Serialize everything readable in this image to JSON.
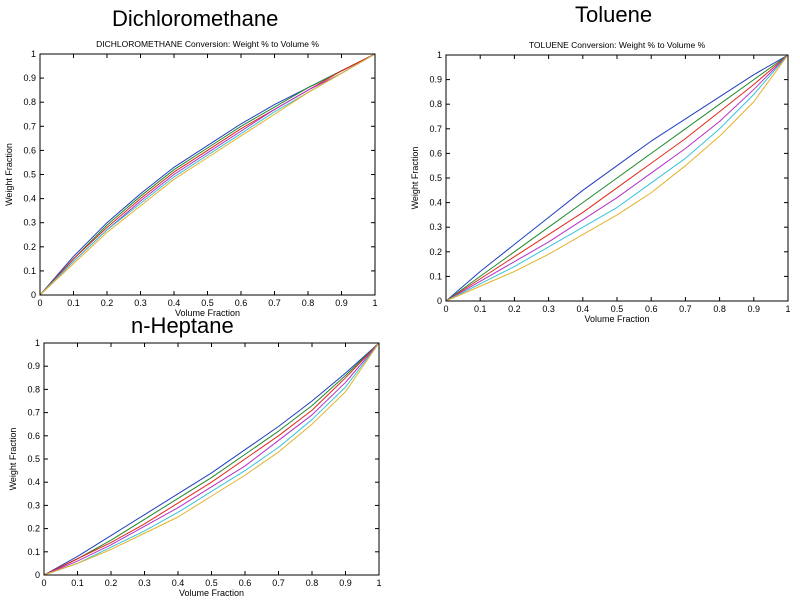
{
  "chart_data": [
    {
      "type": "line",
      "title": "Dichloromethane",
      "subtitle": "DICHLOROMETHANE Conversion: Weight % to Volume %",
      "xlabel": "Volume Fraction",
      "ylabel": "Weight Fraction",
      "xlim": [
        0,
        1
      ],
      "ylim": [
        0,
        1
      ],
      "xticks": [
        "0",
        "0.1",
        "0.2",
        "0.3",
        "0.4",
        "0.5",
        "0.6",
        "0.7",
        "0.8",
        "0.9",
        "1"
      ],
      "yticks": [
        "0",
        "0.1",
        "0.2",
        "0.3",
        "0.4",
        "0.5",
        "0.6",
        "0.7",
        "0.8",
        "0.9",
        "1"
      ],
      "grid": false,
      "x": [
        0,
        0.1,
        0.2,
        0.3,
        0.4,
        0.5,
        0.6,
        0.7,
        0.8,
        0.9,
        1
      ],
      "series": [
        {
          "values": [
            0,
            0.16,
            0.3,
            0.42,
            0.53,
            0.62,
            0.71,
            0.79,
            0.86,
            0.93,
            1
          ]
        },
        {
          "values": [
            0,
            0.15,
            0.29,
            0.41,
            0.52,
            0.61,
            0.7,
            0.78,
            0.86,
            0.93,
            1
          ]
        },
        {
          "values": [
            0,
            0.15,
            0.28,
            0.4,
            0.51,
            0.6,
            0.69,
            0.77,
            0.85,
            0.93,
            1
          ]
        },
        {
          "values": [
            0,
            0.14,
            0.27,
            0.39,
            0.5,
            0.59,
            0.68,
            0.77,
            0.85,
            0.92,
            1
          ]
        },
        {
          "values": [
            0,
            0.14,
            0.27,
            0.38,
            0.49,
            0.58,
            0.67,
            0.76,
            0.84,
            0.92,
            1
          ]
        },
        {
          "values": [
            0,
            0.13,
            0.26,
            0.37,
            0.48,
            0.57,
            0.66,
            0.75,
            0.84,
            0.92,
            1
          ]
        }
      ]
    },
    {
      "type": "line",
      "title": "Toluene",
      "subtitle": "TOLUENE Conversion: Weight % to Volume %",
      "xlabel": "Volume Fraction",
      "ylabel": "Weight Fraction",
      "xlim": [
        0,
        1
      ],
      "ylim": [
        0,
        1
      ],
      "xticks": [
        "0",
        "0.1",
        "0.2",
        "0.3",
        "0.4",
        "0.5",
        "0.6",
        "0.7",
        "0.8",
        "0.9",
        "1"
      ],
      "yticks": [
        "0",
        "0.1",
        "0.2",
        "0.3",
        "0.4",
        "0.5",
        "0.6",
        "0.7",
        "0.8",
        "0.9",
        "1"
      ],
      "grid": false,
      "x": [
        0,
        0.1,
        0.2,
        0.3,
        0.4,
        0.5,
        0.6,
        0.7,
        0.8,
        0.9,
        1
      ],
      "series": [
        {
          "values": [
            0,
            0.12,
            0.23,
            0.34,
            0.45,
            0.55,
            0.65,
            0.74,
            0.83,
            0.92,
            1
          ]
        },
        {
          "values": [
            0,
            0.1,
            0.2,
            0.3,
            0.4,
            0.5,
            0.6,
            0.7,
            0.8,
            0.9,
            1
          ]
        },
        {
          "values": [
            0,
            0.09,
            0.18,
            0.27,
            0.36,
            0.46,
            0.56,
            0.66,
            0.77,
            0.88,
            1
          ]
        },
        {
          "values": [
            0,
            0.08,
            0.16,
            0.24,
            0.33,
            0.42,
            0.52,
            0.62,
            0.73,
            0.86,
            1
          ]
        },
        {
          "values": [
            0,
            0.07,
            0.14,
            0.22,
            0.3,
            0.38,
            0.48,
            0.58,
            0.7,
            0.84,
            1
          ]
        },
        {
          "values": [
            0,
            0.06,
            0.12,
            0.19,
            0.27,
            0.35,
            0.44,
            0.55,
            0.67,
            0.81,
            1
          ]
        }
      ]
    },
    {
      "type": "line",
      "title": "n-Heptane",
      "subtitle": "",
      "xlabel": "Volume Fraction",
      "ylabel": "Weight Fraction",
      "xlim": [
        0,
        1
      ],
      "ylim": [
        0,
        1
      ],
      "xticks": [
        "0",
        "0.1",
        "0.2",
        "0.3",
        "0.4",
        "0.5",
        "0.6",
        "0.7",
        "0.8",
        "0.9",
        "1"
      ],
      "yticks": [
        "0",
        "0.1",
        "0.2",
        "0.3",
        "0.4",
        "0.5",
        "0.6",
        "0.7",
        "0.8",
        "0.9",
        "1"
      ],
      "grid": false,
      "x": [
        0,
        0.1,
        0.2,
        0.3,
        0.4,
        0.5,
        0.6,
        0.7,
        0.8,
        0.9,
        1
      ],
      "series": [
        {
          "values": [
            0,
            0.08,
            0.17,
            0.26,
            0.35,
            0.44,
            0.54,
            0.64,
            0.75,
            0.87,
            1
          ]
        },
        {
          "values": [
            0,
            0.07,
            0.15,
            0.24,
            0.33,
            0.42,
            0.52,
            0.62,
            0.73,
            0.86,
            1
          ]
        },
        {
          "values": [
            0,
            0.07,
            0.14,
            0.22,
            0.31,
            0.4,
            0.5,
            0.6,
            0.71,
            0.85,
            1
          ]
        },
        {
          "values": [
            0,
            0.06,
            0.13,
            0.21,
            0.29,
            0.38,
            0.47,
            0.58,
            0.69,
            0.83,
            1
          ]
        },
        {
          "values": [
            0,
            0.05,
            0.12,
            0.19,
            0.27,
            0.36,
            0.45,
            0.55,
            0.67,
            0.81,
            1
          ]
        },
        {
          "values": [
            0,
            0.05,
            0.11,
            0.18,
            0.25,
            0.34,
            0.43,
            0.53,
            0.65,
            0.79,
            1
          ]
        }
      ]
    }
  ],
  "colors": [
    "#1f3fbf",
    "#1e8a2a",
    "#e0281c",
    "#b431c8",
    "#39c3d8",
    "#e3b22a"
  ]
}
